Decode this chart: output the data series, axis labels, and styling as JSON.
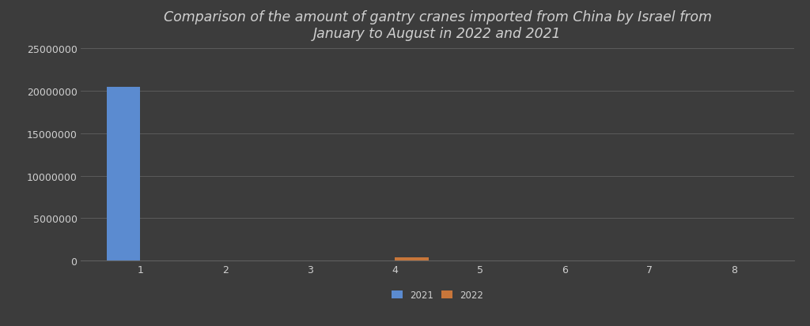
{
  "title": "Comparison of the amount of gantry cranes imported from China by Israel from\nJanuary to August in 2022 and 2021",
  "months": [
    1,
    2,
    3,
    4,
    5,
    6,
    7,
    8
  ],
  "values_2021": [
    20500000,
    0,
    0,
    0,
    0,
    0,
    0,
    0
  ],
  "values_2022": [
    0,
    0,
    0,
    350000,
    0,
    0,
    50000,
    0
  ],
  "color_2021": "#5B8BD0",
  "color_2022": "#C8763A",
  "background_color": "#3C3C3C",
  "plot_bg_color": "#3C3C3C",
  "text_color": "#D0D0D0",
  "grid_color": "#606060",
  "ylim": [
    0,
    25000000
  ],
  "yticks": [
    0,
    5000000,
    10000000,
    15000000,
    20000000,
    25000000
  ],
  "bar_width": 0.4,
  "legend_labels": [
    "2021",
    "2022"
  ],
  "title_fontsize": 12.5,
  "tick_fontsize": 9,
  "legend_fontsize": 8.5
}
